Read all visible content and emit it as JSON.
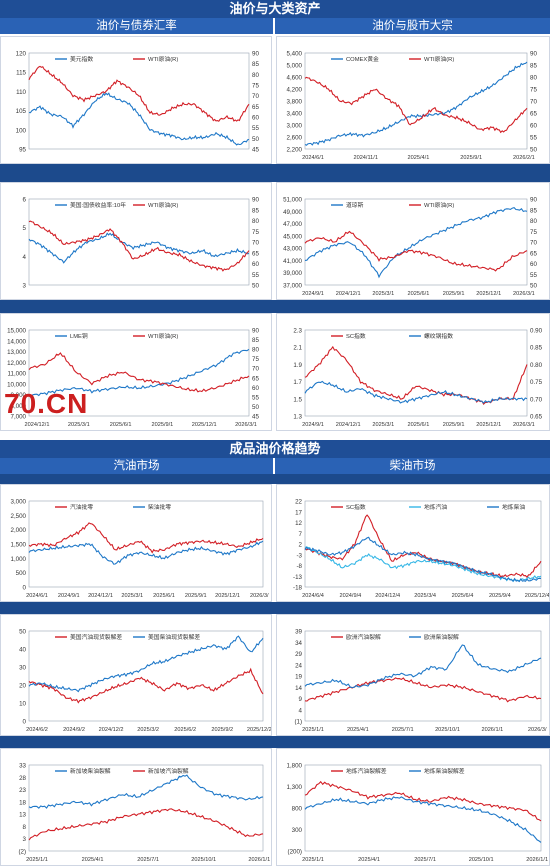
{
  "sections": {
    "top": "油价与大类资产",
    "bottom": "成品油价格趋势"
  },
  "subheaders": {
    "top_left": "油价与债券汇率",
    "top_right": "油价与股市大宗",
    "bottom_left": "汽油市场",
    "bottom_right": "柴油市场"
  },
  "watermark": "70.CN",
  "colors": {
    "blue": "#1f78c8",
    "red": "#d21f26",
    "lightblue": "#36b7e6",
    "section": "#1f4e96",
    "subheader": "#2a62b5"
  },
  "chart_data": [
    {
      "id": "c1",
      "type": "line",
      "legend_pos": "top",
      "xticks": [
        "",
        "",
        "",
        "",
        "",
        "",
        "",
        ""
      ],
      "yleft": {
        "min": 95,
        "max": 120,
        "ticks": [
          "95",
          "100",
          "105",
          "110",
          "115",
          "120"
        ]
      },
      "yright": {
        "min": 45,
        "max": 90,
        "ticks": [
          "45",
          "50",
          "55",
          "60",
          "65",
          "70",
          "75",
          "80",
          "85",
          "90"
        ]
      },
      "series": [
        {
          "name": "美元指数",
          "color": "blue",
          "axis": "left",
          "values": [
            104.5,
            106,
            104,
            103.5,
            101,
            104,
            107.5,
            109.5,
            108,
            107,
            104,
            100,
            99,
            98.5,
            97.5,
            98,
            98,
            99,
            98,
            96,
            97.5
          ]
        },
        {
          "name": "WTI原油(R)",
          "color": "red",
          "axis": "right",
          "values": [
            78,
            84,
            80,
            76,
            70,
            68,
            70,
            72,
            77,
            74,
            70,
            62,
            61,
            64,
            66,
            66,
            62,
            58,
            60,
            58,
            66
          ]
        }
      ]
    },
    {
      "id": "c2",
      "type": "line",
      "legend_pos": "top",
      "xticks": [
        "2024/6/1",
        "2024/11/1",
        "2025/4/1",
        "2025/9/1",
        "2026/2/1"
      ],
      "yleft": {
        "min": 2200,
        "max": 5400,
        "ticks": [
          "2,200",
          "2,600",
          "3,000",
          "3,400",
          "3,800",
          "4,200",
          "4,600",
          "5,000",
          "5,400"
        ]
      },
      "yright": {
        "min": 50,
        "max": 90,
        "ticks": [
          "50",
          "55",
          "60",
          "65",
          "70",
          "75",
          "80",
          "85",
          "90"
        ]
      },
      "series": [
        {
          "name": "COMEX黄金",
          "color": "blue",
          "axis": "left",
          "values": [
            2350,
            2400,
            2500,
            2650,
            2700,
            2650,
            2750,
            2900,
            3100,
            3300,
            3300,
            3350,
            3400,
            3600,
            3900,
            4100,
            4300,
            4600,
            4900,
            5100
          ]
        },
        {
          "name": "WTI原油(R)",
          "color": "red",
          "axis": "right",
          "values": [
            80,
            78,
            75,
            70,
            69,
            72,
            75,
            71,
            68,
            60,
            63,
            67,
            64,
            63,
            61,
            58,
            59,
            57,
            62,
            67
          ]
        }
      ]
    },
    {
      "id": "c3",
      "type": "line",
      "legend_pos": "top",
      "xticks": [
        "",
        "",
        "",
        "",
        "",
        "",
        "",
        ""
      ],
      "yleft": {
        "min": 3,
        "max": 6,
        "ticks": [
          "3",
          "4",
          "5",
          "6"
        ]
      },
      "yright": {
        "min": 50,
        "max": 90,
        "ticks": [
          "50",
          "55",
          "60",
          "65",
          "70",
          "75",
          "80",
          "85",
          "90"
        ]
      },
      "series": [
        {
          "name": "美国:国债收益率:10年",
          "color": "blue",
          "axis": "left",
          "values": [
            4.6,
            4.4,
            4.1,
            3.8,
            4.2,
            4.5,
            4.6,
            4.8,
            4.5,
            4.3,
            4.4,
            4.5,
            4.3,
            4.2,
            4.1,
            4.2,
            4.0,
            4.1,
            4.2,
            4.1
          ]
        },
        {
          "name": "WTI原油(R)",
          "color": "red",
          "axis": "right",
          "values": [
            80,
            77,
            74,
            69,
            70,
            71,
            73,
            76,
            70,
            62,
            64,
            67,
            65,
            64,
            61,
            59,
            58,
            57,
            60,
            66
          ]
        }
      ]
    },
    {
      "id": "c4",
      "type": "line",
      "legend_pos": "top",
      "xticks": [
        "2024/9/1",
        "2024/12/1",
        "2025/3/1",
        "2025/6/1",
        "2025/9/1",
        "2025/12/1",
        "2026/3/1"
      ],
      "yleft": {
        "min": 37000,
        "max": 51000,
        "ticks": [
          "37,000",
          "39,000",
          "41,000",
          "43,000",
          "45,000",
          "47,000",
          "49,000",
          "51,000"
        ]
      },
      "yright": {
        "min": 50,
        "max": 90,
        "ticks": [
          "50",
          "55",
          "60",
          "65",
          "70",
          "75",
          "80",
          "85",
          "90"
        ]
      },
      "series": [
        {
          "name": "道琼斯",
          "color": "blue",
          "axis": "left",
          "values": [
            41000,
            42500,
            43500,
            44000,
            42000,
            38500,
            41500,
            43000,
            44500,
            45500,
            46500,
            47500,
            48000,
            49000,
            49500,
            49000
          ]
        },
        {
          "name": "WTI原油(R)",
          "color": "red",
          "axis": "right",
          "values": [
            70,
            72,
            70,
            75,
            69,
            62,
            63,
            66,
            65,
            63,
            60,
            59,
            58,
            57,
            63,
            66
          ]
        }
      ]
    },
    {
      "id": "c5",
      "type": "line",
      "legend_pos": "top",
      "xticks": [
        "2024/12/1",
        "2025/3/1",
        "2025/6/1",
        "2025/9/1",
        "2025/12/1",
        "2026/3/1"
      ],
      "yleft": {
        "min": 7000,
        "max": 15000,
        "ticks": [
          "7,000",
          "8,000",
          "9,000",
          "10,000",
          "11,000",
          "12,000",
          "13,000",
          "14,000",
          "15,000"
        ]
      },
      "yright": {
        "min": 45,
        "max": 90,
        "ticks": [
          "45",
          "50",
          "55",
          "60",
          "65",
          "70",
          "75",
          "80",
          "85",
          "90"
        ]
      },
      "series": [
        {
          "name": "LME铜",
          "color": "blue",
          "axis": "left",
          "values": [
            8900,
            9100,
            9400,
            9600,
            9300,
            9500,
            9700,
            9600,
            9800,
            10100,
            10600,
            11200,
            11800,
            12800,
            13200
          ]
        },
        {
          "name": "WTI原油(R)",
          "color": "red",
          "axis": "right",
          "values": [
            70,
            72,
            78,
            68,
            62,
            66,
            68,
            64,
            63,
            61,
            59,
            58,
            60,
            63,
            66
          ]
        }
      ]
    },
    {
      "id": "c6",
      "type": "line",
      "legend_pos": "top",
      "xticks": [
        "2024/9/1",
        "2024/12/1",
        "2025/3/1",
        "2025/6/1",
        "2025/9/1",
        "2025/12/1",
        "2026/3/1"
      ],
      "yleft": {
        "min": 1.3,
        "max": 2.3,
        "ticks": [
          "1.3",
          "1.5",
          "1.7",
          "1.9",
          "2.1",
          "2.3"
        ]
      },
      "yright": {
        "min": 0.65,
        "max": 0.9,
        "ticks": [
          "0.65",
          "0.70",
          "0.75",
          "0.80",
          "0.85",
          "0.90"
        ]
      },
      "series": [
        {
          "name": "SC指数",
          "color": "red",
          "axis": "left",
          "values": [
            1.75,
            1.9,
            2.1,
            1.95,
            1.7,
            1.6,
            1.55,
            1.5,
            1.65,
            1.6,
            1.55,
            1.55,
            1.5,
            1.45,
            1.5,
            1.5,
            1.9
          ]
        },
        {
          "name": "螺纹钢指数",
          "color": "blue",
          "axis": "right",
          "values": [
            0.72,
            0.75,
            0.74,
            0.72,
            0.73,
            0.71,
            0.7,
            0.69,
            0.7,
            0.71,
            0.72,
            0.71,
            0.7,
            0.69,
            0.7,
            0.7,
            0.7
          ]
        }
      ]
    },
    {
      "id": "c7",
      "type": "line",
      "legend_pos": "top",
      "xticks": [
        "2024/6/1",
        "2024/9/1",
        "2024/12/1",
        "2025/3/1",
        "2025/6/1",
        "2025/9/1",
        "2025/12/1",
        "2026/3/"
      ],
      "yleft": {
        "min": 0,
        "max": 3000,
        "ticks": [
          "0",
          "500",
          "1,000",
          "1,500",
          "2,000",
          "2,500",
          "3,000"
        ]
      },
      "series": [
        {
          "name": "汽油批零",
          "color": "red",
          "axis": "left",
          "values": [
            1450,
            1500,
            1450,
            1700,
            1900,
            2250,
            1800,
            1300,
            1450,
            1600,
            1250,
            1300,
            1500,
            1550,
            1600,
            1550,
            1500,
            1400,
            1550,
            1700
          ]
        },
        {
          "name": "柴油批零",
          "color": "blue",
          "axis": "left",
          "values": [
            1250,
            1300,
            1350,
            1400,
            1450,
            1500,
            1050,
            800,
            1100,
            1200,
            1100,
            1000,
            1200,
            1300,
            1350,
            1250,
            1150,
            1300,
            1400,
            1600
          ]
        }
      ]
    },
    {
      "id": "c8",
      "type": "line",
      "legend_pos": "top",
      "xticks": [
        "2024/6/4",
        "2024/9/4",
        "2024/12/4",
        "2025/3/4",
        "2025/6/4",
        "2025/9/4",
        "2025/12/4"
      ],
      "yleft": {
        "min": -18,
        "max": 22,
        "ticks": [
          "-18",
          "-13",
          "-8",
          "-3",
          "2",
          "7",
          "12",
          "17",
          "22"
        ]
      },
      "series": [
        {
          "name": "SC指数",
          "color": "red",
          "axis": "left",
          "values": [
            0,
            -2,
            -4,
            -5,
            2,
            16,
            4,
            -6,
            -3,
            -2,
            -5,
            -6,
            -7,
            -9,
            -11,
            -12,
            -13,
            -12,
            -13,
            -6
          ]
        },
        {
          "name": "地炼汽油",
          "color": "lightblue",
          "axis": "left",
          "values": [
            1,
            -2,
            -5,
            -9,
            -7,
            -3,
            -5,
            -9,
            -8,
            -6,
            -6,
            -7,
            -8,
            -10,
            -12,
            -13,
            -14,
            -15,
            -14,
            -13
          ]
        },
        {
          "name": "地炼柴油",
          "color": "blue",
          "axis": "left",
          "values": [
            0,
            -1,
            -3,
            -2,
            1,
            5,
            1,
            -3,
            -2,
            -3,
            -5,
            -6,
            -7,
            -9,
            -11,
            -12,
            -14,
            -15,
            -15,
            -14
          ]
        }
      ]
    },
    {
      "id": "c9",
      "type": "line",
      "legend_pos": "top",
      "xticks": [
        "2024/6/2",
        "2024/9/2",
        "2024/12/2",
        "2025/3/2",
        "2025/6/2",
        "2025/9/2",
        "2025/12/2"
      ],
      "yleft": {
        "min": 0,
        "max": 50,
        "ticks": [
          "0",
          "10",
          "20",
          "30",
          "40",
          "50"
        ]
      },
      "series": [
        {
          "name": "美国汽油现货裂解差",
          "color": "red",
          "axis": "left",
          "values": [
            22,
            20,
            18,
            13,
            11,
            13,
            16,
            19,
            21,
            24,
            21,
            17,
            21,
            18,
            20,
            17,
            21,
            25,
            28,
            15
          ]
        },
        {
          "name": "美国柴油现货裂解差",
          "color": "blue",
          "axis": "left",
          "values": [
            20,
            21,
            19,
            18,
            17,
            20,
            23,
            25,
            26,
            28,
            32,
            33,
            36,
            38,
            40,
            42,
            40,
            47,
            38,
            46
          ]
        }
      ]
    },
    {
      "id": "c10",
      "type": "line",
      "legend_pos": "top",
      "xticks": [
        "2025/1/1",
        "2025/4/1",
        "2025/7/1",
        "2025/10/1",
        "2026/1/1",
        "2026/3/"
      ],
      "yleft": {
        "min": -1,
        "max": 39,
        "ticks": [
          "(1)",
          "4",
          "9",
          "14",
          "19",
          "24",
          "29",
          "34",
          "39"
        ]
      },
      "series": [
        {
          "name": "欧洲汽油裂解",
          "color": "red",
          "axis": "left",
          "values": [
            8,
            10,
            12,
            14,
            16,
            17,
            18,
            16,
            14,
            15,
            14,
            12,
            10,
            8,
            10,
            9
          ]
        },
        {
          "name": "欧洲柴油裂解",
          "color": "blue",
          "axis": "left",
          "values": [
            15,
            16,
            17,
            14,
            15,
            18,
            20,
            19,
            23,
            22,
            33,
            24,
            22,
            21,
            24,
            27
          ]
        }
      ]
    },
    {
      "id": "c11",
      "type": "line",
      "legend_pos": "top",
      "xticks": [
        "2025/1/1",
        "2025/4/1",
        "2025/7/1",
        "2025/10/1",
        "2026/1/1"
      ],
      "yleft": {
        "min": -2,
        "max": 33,
        "ticks": [
          "(2)",
          "3",
          "8",
          "13",
          "18",
          "23",
          "28",
          "33"
        ]
      },
      "series": [
        {
          "name": "新加坡柴油裂解",
          "color": "blue",
          "axis": "left",
          "values": [
            16,
            16,
            17,
            18,
            17,
            19,
            21,
            20,
            23,
            26,
            29,
            24,
            21,
            20,
            19,
            20
          ]
        },
        {
          "name": "新加坡汽油裂解",
          "color": "red",
          "axis": "left",
          "values": [
            3,
            6,
            7,
            8,
            9,
            10,
            12,
            13,
            14,
            15,
            14,
            12,
            10,
            7,
            4,
            5
          ]
        }
      ]
    },
    {
      "id": "c12",
      "type": "line",
      "legend_pos": "top",
      "xticks": [
        "2025/1/1",
        "2025/4/1",
        "2025/7/1",
        "2025/10/1",
        "2026/1/1"
      ],
      "yleft": {
        "min": -200,
        "max": 1800,
        "ticks": [
          "(200)",
          "300",
          "800",
          "1,300",
          "1,800"
        ]
      },
      "series": [
        {
          "name": "地炼汽油裂解差",
          "color": "red",
          "axis": "left",
          "values": [
            1100,
            1400,
            1300,
            1200,
            1050,
            1100,
            1150,
            1000,
            950,
            1050,
            1000,
            900,
            850,
            800,
            750,
            500
          ]
        },
        {
          "name": "地炼柴油裂解差",
          "color": "blue",
          "axis": "left",
          "values": [
            800,
            900,
            1000,
            950,
            900,
            1000,
            1050,
            950,
            900,
            850,
            800,
            750,
            650,
            500,
            300,
            0
          ]
        }
      ]
    }
  ]
}
